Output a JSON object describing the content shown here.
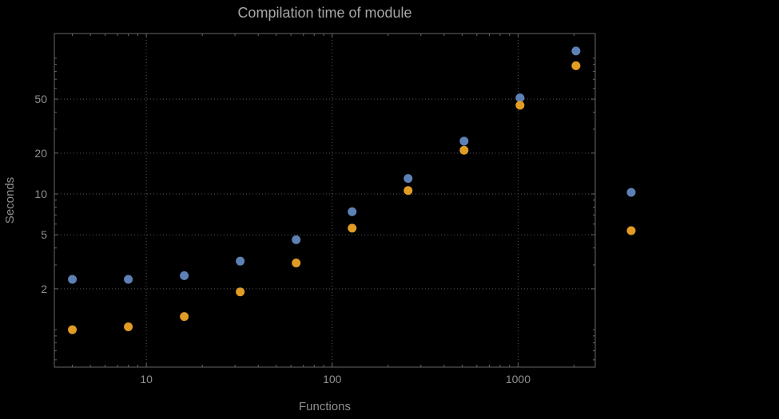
{
  "chart_data": {
    "type": "scatter",
    "title": "Compilation time of module",
    "xlabel": "Functions",
    "ylabel": "Seconds",
    "xscale": "log",
    "yscale": "log",
    "xlim": [
      3.2,
      2600
    ],
    "ylim": [
      0.53,
      152
    ],
    "grid": "dotted",
    "xticks": {
      "values": [
        10,
        100,
        1000
      ],
      "labels": [
        "10",
        "100",
        "1000"
      ]
    },
    "yticks": {
      "values": [
        2,
        5,
        10,
        20,
        50
      ],
      "labels": [
        "2",
        "5",
        "10",
        "20",
        "50"
      ]
    },
    "x": [
      4,
      8,
      16,
      32,
      64,
      128,
      256,
      512,
      1024,
      2048
    ],
    "series": [
      {
        "name": "blue",
        "color": "#5E81B5",
        "values": [
          2.35,
          2.35,
          2.5,
          3.2,
          4.6,
          7.4,
          13,
          24.5,
          51,
          113
        ]
      },
      {
        "name": "orange",
        "color": "#E19C24",
        "values": [
          1.0,
          1.05,
          1.25,
          1.9,
          3.1,
          5.6,
          10.6,
          21,
          45,
          88
        ]
      }
    ],
    "legend": {
      "position": "right-outside",
      "items": [
        {
          "color": "#5E81B5"
        },
        {
          "color": "#E19C24"
        }
      ]
    }
  },
  "colors": {
    "background": "#000000",
    "frame": "#666666",
    "grid": "#5a5a5a",
    "tick_label": "#8f8f8f",
    "axis_label": "#8f8f8f",
    "title": "#a8a8a8"
  }
}
